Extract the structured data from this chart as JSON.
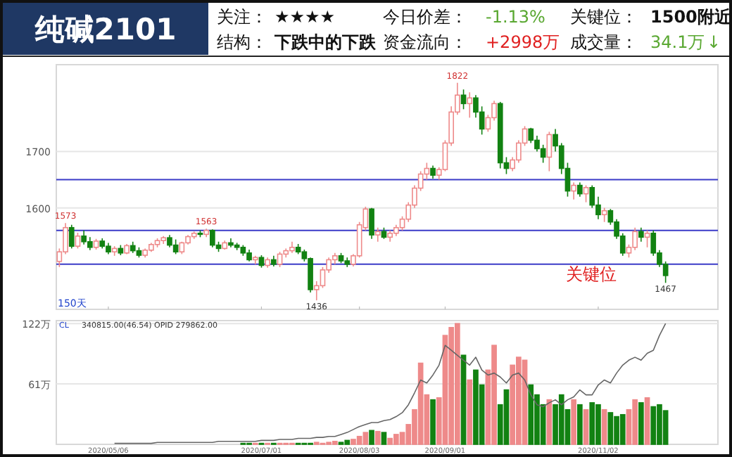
{
  "chart_data": [
    {
      "type": "other",
      "title": "纯碱2101",
      "annotations": [
        "关注：",
        "★★★★",
        "今日价差：",
        "-1.13%",
        "关键位：",
        "1500附近",
        "结构：",
        "下跌中的下跌",
        "资金流向：",
        "+2998万",
        "成交量：",
        "34.1万",
        "↓"
      ]
    },
    {
      "type": "candlestick",
      "tick_labels": "y",
      "grid": "y",
      "ylim": [
        1420,
        1854
      ],
      "yticks": [
        1600,
        1700
      ],
      "categories": [
        null,
        null,
        null,
        null,
        null,
        null,
        null,
        null,
        "2020/05/06",
        null,
        null,
        null,
        null,
        null,
        null,
        null,
        null,
        null,
        null,
        null,
        null,
        null,
        null,
        null,
        null,
        null,
        null,
        null,
        null,
        null,
        null,
        null,
        null,
        "2020/07/01",
        null,
        null,
        null,
        null,
        null,
        null,
        null,
        null,
        null,
        null,
        null,
        null,
        null,
        null,
        null,
        "2020/08/03",
        null,
        null,
        null,
        null,
        null,
        null,
        null,
        null,
        null,
        null,
        null,
        null,
        null,
        "2020/09/01",
        null,
        null,
        null,
        null,
        null,
        null,
        null,
        null,
        null,
        null,
        null,
        null,
        null,
        null,
        null,
        null,
        null,
        null,
        null,
        null,
        null,
        null,
        null,
        null,
        "2020/11/02",
        null,
        null,
        null,
        null,
        null,
        null,
        null,
        null,
        null,
        null,
        null
      ],
      "ohlc": [
        [
          1505,
          1528,
          1495,
          1522
        ],
        [
          1522,
          1573,
          1518,
          1565
        ],
        [
          1565,
          1570,
          1528,
          1532
        ],
        [
          1532,
          1556,
          1528,
          1550
        ],
        [
          1550,
          1560,
          1535,
          1540
        ],
        [
          1540,
          1548,
          1525,
          1530
        ],
        [
          1530,
          1545,
          1526,
          1541
        ],
        [
          1541,
          1546,
          1528,
          1532
        ],
        [
          1532,
          1538,
          1518,
          1522
        ],
        [
          1522,
          1532,
          1515,
          1528
        ],
        [
          1528,
          1534,
          1516,
          1520
        ],
        [
          1520,
          1536,
          1518,
          1533
        ],
        [
          1533,
          1540,
          1520,
          1524
        ],
        [
          1524,
          1530,
          1512,
          1516
        ],
        [
          1516,
          1528,
          1512,
          1525
        ],
        [
          1525,
          1538,
          1522,
          1535
        ],
        [
          1535,
          1546,
          1530,
          1542
        ],
        [
          1542,
          1550,
          1536,
          1547
        ],
        [
          1547,
          1552,
          1530,
          1534
        ],
        [
          1534,
          1544,
          1518,
          1522
        ],
        [
          1522,
          1540,
          1518,
          1538
        ],
        [
          1538,
          1552,
          1535,
          1549
        ],
        [
          1549,
          1558,
          1545,
          1555
        ],
        [
          1555,
          1560,
          1548,
          1553
        ],
        [
          1553,
          1563,
          1548,
          1560
        ],
        [
          1560,
          1562,
          1530,
          1534
        ],
        [
          1534,
          1540,
          1522,
          1528
        ],
        [
          1528,
          1542,
          1526,
          1538
        ],
        [
          1538,
          1546,
          1530,
          1534
        ],
        [
          1534,
          1538,
          1525,
          1530
        ],
        [
          1530,
          1534,
          1515,
          1520
        ],
        [
          1520,
          1526,
          1505,
          1508
        ],
        [
          1508,
          1515,
          1500,
          1512
        ],
        [
          1512,
          1516,
          1494,
          1498
        ],
        [
          1498,
          1512,
          1494,
          1508
        ],
        [
          1508,
          1515,
          1496,
          1500
        ],
        [
          1500,
          1522,
          1495,
          1518
        ],
        [
          1518,
          1528,
          1512,
          1524
        ],
        [
          1524,
          1540,
          1520,
          1530
        ],
        [
          1530,
          1536,
          1518,
          1522
        ],
        [
          1522,
          1526,
          1505,
          1510
        ],
        [
          1510,
          1512,
          1450,
          1455
        ],
        [
          1455,
          1470,
          1436,
          1462
        ],
        [
          1462,
          1495,
          1458,
          1490
        ],
        [
          1490,
          1512,
          1485,
          1508
        ],
        [
          1508,
          1520,
          1500,
          1515
        ],
        [
          1515,
          1520,
          1502,
          1506
        ],
        [
          1506,
          1512,
          1495,
          1500
        ],
        [
          1500,
          1518,
          1496,
          1515
        ],
        [
          1515,
          1575,
          1512,
          1570
        ],
        [
          1565,
          1602,
          1560,
          1598
        ],
        [
          1598,
          1600,
          1545,
          1552
        ],
        [
          1552,
          1565,
          1540,
          1558
        ],
        [
          1558,
          1565,
          1545,
          1548
        ],
        [
          1548,
          1560,
          1540,
          1555
        ],
        [
          1555,
          1570,
          1550,
          1565
        ],
        [
          1565,
          1585,
          1560,
          1580
        ],
        [
          1580,
          1610,
          1575,
          1605
        ],
        [
          1605,
          1640,
          1600,
          1635
        ],
        [
          1635,
          1665,
          1630,
          1660
        ],
        [
          1660,
          1680,
          1650,
          1670
        ],
        [
          1670,
          1675,
          1652,
          1658
        ],
        [
          1658,
          1672,
          1650,
          1668
        ],
        [
          1668,
          1720,
          1665,
          1715
        ],
        [
          1715,
          1780,
          1710,
          1770
        ],
        [
          1770,
          1822,
          1765,
          1800
        ],
        [
          1800,
          1810,
          1775,
          1785
        ],
        [
          1785,
          1805,
          1760,
          1795
        ],
        [
          1795,
          1800,
          1760,
          1770
        ],
        [
          1770,
          1780,
          1730,
          1740
        ],
        [
          1740,
          1765,
          1735,
          1760
        ],
        [
          1760,
          1790,
          1755,
          1785
        ],
        [
          1785,
          1788,
          1670,
          1680
        ],
        [
          1680,
          1690,
          1660,
          1670
        ],
        [
          1670,
          1690,
          1665,
          1685
        ],
        [
          1685,
          1720,
          1680,
          1715
        ],
        [
          1715,
          1745,
          1710,
          1740
        ],
        [
          1740,
          1742,
          1715,
          1720
        ],
        [
          1720,
          1728,
          1700,
          1705
        ],
        [
          1705,
          1712,
          1680,
          1690
        ],
        [
          1690,
          1735,
          1665,
          1730
        ],
        [
          1730,
          1740,
          1700,
          1710
        ],
        [
          1710,
          1715,
          1660,
          1670
        ],
        [
          1670,
          1680,
          1620,
          1630
        ],
        [
          1630,
          1645,
          1615,
          1640
        ],
        [
          1640,
          1645,
          1620,
          1625
        ],
        [
          1625,
          1640,
          1610,
          1636
        ],
        [
          1636,
          1640,
          1600,
          1605
        ],
        [
          1605,
          1620,
          1580,
          1588
        ],
        [
          1588,
          1600,
          1575,
          1595
        ],
        [
          1595,
          1598,
          1570,
          1575
        ],
        [
          1575,
          1580,
          1545,
          1550
        ],
        [
          1550,
          1555,
          1515,
          1520
        ],
        [
          1520,
          1535,
          1512,
          1530
        ],
        [
          1530,
          1565,
          1525,
          1558
        ],
        [
          1558,
          1565,
          1540,
          1548
        ],
        [
          1548,
          1560,
          1530,
          1555
        ],
        [
          1555,
          1560,
          1515,
          1520
        ],
        [
          1520,
          1525,
          1495,
          1500
        ],
        [
          1500,
          1505,
          1467,
          1480
        ]
      ],
      "ref_lines": [
        {
          "axis": "y",
          "value": 1560,
          "color": "#3b3bc8"
        },
        {
          "axis": "y",
          "value": 1650,
          "color": "#3b3bc8"
        },
        {
          "axis": "y",
          "value": 1500,
          "label": "关键位",
          "color": "#3b3bc8"
        }
      ],
      "annotations": [
        {
          "text": "1573",
          "y": 1573
        },
        {
          "text": "1563",
          "y": 1563
        },
        {
          "text": "1822",
          "y": 1822
        },
        {
          "text": "1436",
          "y": 1436
        },
        {
          "text": "1467",
          "y": 1467
        },
        "150天"
      ]
    },
    {
      "type": "bar",
      "grid": "y",
      "ylim": [
        0,
        125
      ],
      "yticks": [
        {
          "value": 122,
          "label": "122万"
        },
        {
          "value": 61,
          "label": "61万"
        }
      ],
      "categories": [
        null,
        null,
        null,
        null,
        null,
        null,
        null,
        null,
        "2020/05/06",
        null,
        null,
        null,
        null,
        null,
        null,
        null,
        null,
        null,
        null,
        null,
        null,
        null,
        null,
        null,
        null,
        null,
        null,
        null,
        null,
        null,
        null,
        null,
        null,
        "2020/07/01",
        null,
        null,
        null,
        null,
        null,
        null,
        null,
        null,
        null,
        null,
        null,
        null,
        null,
        null,
        null,
        "2020/08/03",
        null,
        null,
        null,
        null,
        null,
        null,
        null,
        null,
        null,
        null,
        null,
        null,
        null,
        "2020/09/01",
        null,
        null,
        null,
        null,
        null,
        null,
        null,
        null,
        null,
        null,
        null,
        null,
        null,
        null,
        null,
        null,
        null,
        null,
        null,
        null,
        null,
        null,
        null,
        null,
        "2020/11/02",
        null,
        null,
        null,
        null,
        null,
        null,
        null,
        null,
        null,
        null,
        null
      ],
      "series": [
        {
          "type": "bar",
          "colors": [
            "#ee8a8a",
            "#ee8a8a",
            "#128212",
            "#ee8a8a",
            "#128212",
            "#128212",
            "#ee8a8a",
            "#128212",
            "#128212",
            "#ee8a8a",
            "#128212",
            "#ee8a8a",
            "#128212",
            "#128212",
            "#ee8a8a",
            "#ee8a8a",
            "#ee8a8a",
            "#ee8a8a",
            "#128212",
            "#128212",
            "#ee8a8a",
            "#ee8a8a",
            "#ee8a8a",
            "#128212",
            "#ee8a8a",
            "#128212",
            "#128212",
            "#ee8a8a",
            "#128212",
            "#128212",
            "#128212",
            "#128212",
            "#ee8a8a",
            "#128212",
            "#ee8a8a",
            "#128212",
            "#ee8a8a",
            "#ee8a8a",
            "#ee8a8a",
            "#128212",
            "#128212",
            "#128212",
            "#ee8a8a",
            "#ee8a8a",
            "#ee8a8a",
            "#ee8a8a",
            "#128212",
            "#128212",
            "#ee8a8a",
            "#ee8a8a",
            "#ee8a8a",
            "#128212",
            "#ee8a8a",
            "#128212",
            "#ee8a8a",
            "#ee8a8a",
            "#ee8a8a",
            "#ee8a8a",
            "#ee8a8a",
            "#ee8a8a",
            "#ee8a8a",
            "#128212",
            "#ee8a8a",
            "#ee8a8a",
            "#ee8a8a",
            "#ee8a8a",
            "#128212",
            "#ee8a8a",
            "#128212",
            "#128212",
            "#ee8a8a",
            "#ee8a8a",
            "#128212",
            "#128212",
            "#ee8a8a",
            "#ee8a8a",
            "#ee8a8a",
            "#128212",
            "#128212",
            "#128212",
            "#ee8a8a",
            "#128212",
            "#128212",
            "#128212",
            "#ee8a8a",
            "#128212",
            "#ee8a8a",
            "#128212",
            "#128212",
            "#ee8a8a",
            "#128212",
            "#128212",
            "#128212",
            "#ee8a8a",
            "#ee8a8a",
            "#128212",
            "#ee8a8a",
            "#128212",
            "#128212",
            "#128212"
          ],
          "values": [
            0,
            0,
            0,
            0,
            0,
            0,
            0,
            0,
            0,
            0,
            0,
            0,
            0,
            0,
            0,
            0,
            0,
            0,
            0,
            0,
            0,
            0,
            0,
            0,
            0,
            0,
            0,
            0,
            0,
            0,
            1,
            1,
            1,
            1,
            1,
            1,
            1,
            1,
            1,
            1,
            1,
            1,
            2,
            1,
            2,
            3,
            2,
            4,
            5,
            8,
            12,
            14,
            13,
            12,
            6,
            10,
            12,
            20,
            35,
            82,
            50,
            45,
            47,
            110,
            118,
            122,
            90,
            65,
            75,
            60,
            75,
            100,
            40,
            55,
            80,
            88,
            85,
            60,
            50,
            40,
            45,
            40,
            50,
            35,
            45,
            40,
            35,
            42,
            40,
            35,
            32,
            28,
            30,
            35,
            45,
            42,
            47,
            38,
            40,
            34
          ]
        },
        {
          "type": "line",
          "color": "#666666",
          "values": [
            null,
            null,
            null,
            null,
            null,
            null,
            null,
            null,
            null,
            1,
            1,
            1,
            1,
            1,
            1,
            1,
            2,
            2,
            2,
            2,
            2,
            2,
            2,
            2,
            2,
            2,
            3,
            3,
            3,
            3,
            3,
            3,
            3,
            4,
            4,
            4,
            5,
            5,
            5,
            6,
            6,
            6,
            7,
            7,
            8,
            8,
            10,
            12,
            15,
            18,
            20,
            22,
            22,
            24,
            25,
            28,
            32,
            40,
            52,
            65,
            62,
            70,
            80,
            100,
            95,
            90,
            85,
            80,
            88,
            75,
            70,
            72,
            68,
            62,
            70,
            72,
            65,
            50,
            40,
            38,
            42,
            45,
            40,
            45,
            48,
            55,
            50,
            50,
            60,
            65,
            62,
            72,
            80,
            85,
            88,
            85,
            92,
            95,
            110,
            122
          ]
        }
      ],
      "annotations": [
        "CL",
        "340815.00(46.54)  OPID 279862.00"
      ]
    }
  ]
}
